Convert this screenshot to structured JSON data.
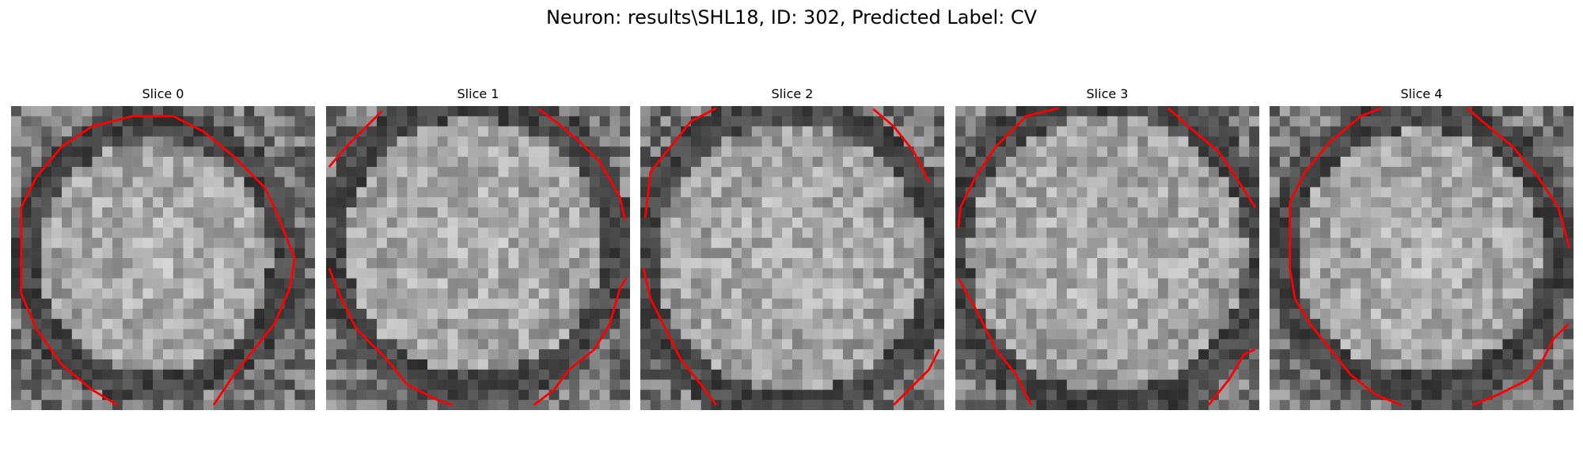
{
  "figure": {
    "title": "Neuron: results\\SHL18, ID: 302, Predicted Label: CV"
  },
  "panels": [
    {
      "title": "Slice 0"
    },
    {
      "title": "Slice 1"
    },
    {
      "title": "Slice 2"
    },
    {
      "title": "Slice 3"
    },
    {
      "title": "Slice 4"
    }
  ],
  "colors": {
    "contour": "#ff0000",
    "background": "#ffffff"
  }
}
